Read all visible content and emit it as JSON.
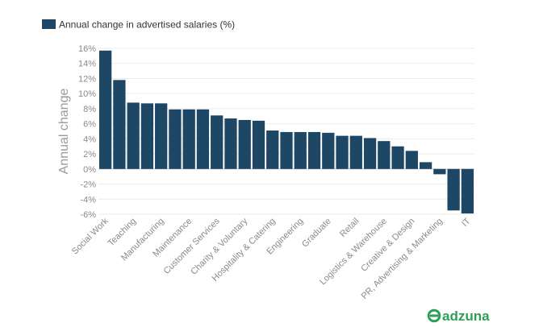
{
  "chart_data": {
    "type": "bar",
    "legend": {
      "label": "Annual change in advertised salaries (%)",
      "position": "top-left"
    },
    "ylabel": "Annual change",
    "xlabel": "",
    "ylim": [
      -6,
      16
    ],
    "yticks": [
      16,
      14,
      12,
      10,
      8,
      6,
      4,
      2,
      0,
      -2,
      -4,
      -6
    ],
    "ytick_labels": [
      "16%",
      "14%",
      "12%",
      "10%",
      "8%",
      "6%",
      "4%",
      "2%",
      "0%",
      "-2%",
      "-4%",
      "-6%"
    ],
    "grid": true,
    "categories": [
      "Social Work",
      "",
      "Teaching",
      "",
      "Manufacturing",
      "",
      "Maintenance",
      "",
      "Customer Services",
      "",
      "Charity & Voluntary",
      "",
      "Hospitality & Catering",
      "",
      "Engineering",
      "",
      "Graduate",
      "",
      "Retail",
      "",
      "Logistics & Warehouse",
      "",
      "Creative & Design",
      "",
      "PR, Advertising & Marketing",
      "",
      "IT"
    ],
    "values": [
      15.7,
      11.8,
      8.8,
      8.7,
      8.7,
      7.9,
      7.9,
      7.9,
      7.1,
      6.7,
      6.5,
      6.4,
      5.1,
      4.9,
      4.9,
      4.9,
      4.8,
      4.4,
      4.4,
      4.1,
      3.7,
      3.0,
      2.4,
      0.9,
      -0.7,
      -5.5,
      -5.9
    ],
    "color": "#1e4766"
  },
  "brand": {
    "name": "adzuna",
    "color": "#2e9e57"
  }
}
